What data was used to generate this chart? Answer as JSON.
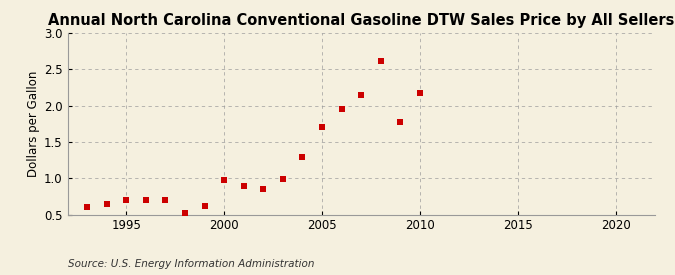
{
  "title": "Annual North Carolina Conventional Gasoline DTW Sales Price by All Sellers",
  "ylabel": "Dollars per Gallon",
  "source": "Source: U.S. Energy Information Administration",
  "years": [
    1993,
    1994,
    1995,
    1996,
    1997,
    1998,
    1999,
    2000,
    2001,
    2002,
    2003,
    2004,
    2005,
    2006,
    2007,
    2008,
    2009,
    2010
  ],
  "values": [
    0.61,
    0.65,
    0.7,
    0.7,
    0.7,
    0.52,
    0.62,
    0.98,
    0.89,
    0.85,
    0.99,
    1.29,
    1.7,
    1.96,
    2.15,
    2.62,
    1.77,
    2.18
  ],
  "marker_color": "#cc0000",
  "background_color": "#f5f0df",
  "grid_color": "#999999",
  "xlim": [
    1992,
    2022
  ],
  "ylim": [
    0.5,
    3.0
  ],
  "xticks": [
    1995,
    2000,
    2005,
    2010,
    2015,
    2020
  ],
  "yticks": [
    0.5,
    1.0,
    1.5,
    2.0,
    2.5,
    3.0
  ],
  "title_fontsize": 10.5,
  "axis_label_fontsize": 8.5,
  "tick_fontsize": 8.5,
  "source_fontsize": 7.5
}
